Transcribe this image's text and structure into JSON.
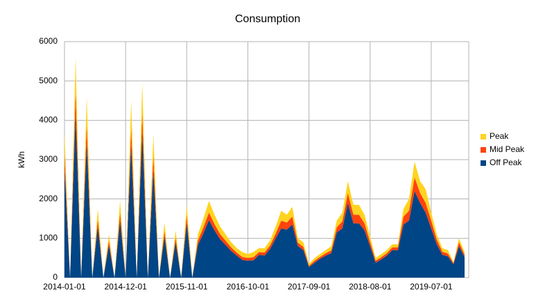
{
  "chart_data": {
    "type": "stacked_area",
    "title": "Consumption",
    "y_label": "kWh",
    "categories": [
      "2014-01-01",
      null,
      null,
      null,
      null,
      null,
      null,
      null,
      null,
      null,
      null,
      "2014-12-01",
      null,
      null,
      null,
      null,
      null,
      null,
      null,
      null,
      null,
      null,
      "2015-11-01",
      null,
      null,
      null,
      null,
      null,
      null,
      null,
      null,
      null,
      null,
      "2016-10-01",
      null,
      null,
      null,
      null,
      null,
      null,
      null,
      null,
      null,
      null,
      "2017-09-01",
      null,
      null,
      null,
      null,
      null,
      null,
      null,
      null,
      null,
      null,
      "2018-08-01",
      null,
      null,
      null,
      null,
      null,
      null,
      null,
      null,
      null,
      null,
      "2019-07-01",
      null,
      null,
      null,
      null,
      null,
      null
    ],
    "series": [
      {
        "name": "Off Peak",
        "color": "#004586",
        "values": [
          2780,
          0,
          4200,
          0,
          3450,
          0,
          1310,
          0,
          830,
          0,
          1460,
          0,
          3380,
          0,
          3710,
          0,
          2740,
          0,
          1050,
          0,
          900,
          0,
          1390,
          0,
          830,
          1130,
          1460,
          1200,
          980,
          830,
          680,
          560,
          450,
          430,
          440,
          580,
          560,
          730,
          1000,
          1250,
          1220,
          1350,
          800,
          700,
          270,
          380,
          480,
          560,
          620,
          1150,
          1250,
          1900,
          1380,
          1380,
          1200,
          800,
          380,
          460,
          560,
          700,
          700,
          1350,
          1450,
          2200,
          1900,
          1650,
          1250,
          850,
          580,
          540,
          340,
          800,
          520
        ]
      },
      {
        "name": "Mid Peak",
        "color": "#ff420e",
        "values": [
          370,
          0,
          560,
          0,
          460,
          0,
          175,
          0,
          110,
          0,
          195,
          0,
          450,
          0,
          495,
          0,
          365,
          0,
          140,
          0,
          120,
          0,
          185,
          0,
          110,
          150,
          195,
          160,
          130,
          110,
          90,
          75,
          75,
          70,
          80,
          70,
          80,
          90,
          120,
          200,
          180,
          200,
          90,
          80,
          30,
          50,
          50,
          60,
          70,
          130,
          180,
          250,
          220,
          220,
          180,
          110,
          50,
          60,
          60,
          70,
          70,
          200,
          250,
          350,
          250,
          250,
          200,
          120,
          80,
          70,
          30,
          100,
          60
        ]
      },
      {
        "name": "Peak",
        "color": "#ffd320",
        "values": [
          550,
          0,
          840,
          0,
          690,
          0,
          265,
          0,
          160,
          0,
          295,
          0,
          670,
          0,
          745,
          0,
          545,
          0,
          210,
          0,
          180,
          0,
          275,
          0,
          160,
          220,
          295,
          240,
          190,
          160,
          130,
          115,
          125,
          100,
          130,
          100,
          110,
          130,
          180,
          250,
          200,
          250,
          110,
          120,
          50,
          70,
          70,
          80,
          110,
          170,
          220,
          300,
          250,
          250,
          220,
          140,
          70,
          80,
          80,
          80,
          80,
          200,
          300,
          400,
          300,
          350,
          200,
          130,
          90,
          90,
          30,
          100,
          70
        ]
      }
    ],
    "ylim": [
      0,
      6000
    ],
    "yticks": [
      0,
      1000,
      2000,
      3000,
      4000,
      5000,
      6000
    ],
    "grid": true
  }
}
